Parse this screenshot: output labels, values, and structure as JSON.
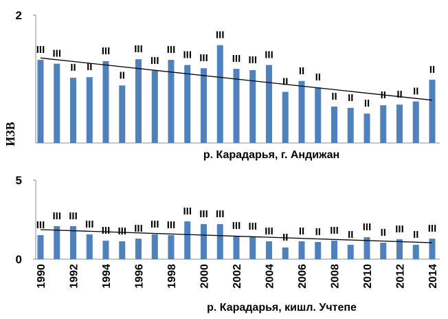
{
  "chart_data": [
    {
      "type": "bar",
      "subtitle": "р. Карадарья, г. Андижан",
      "y_label": "ИЗВ",
      "color": "#4f81bd",
      "values": [
        1.3,
        1.24,
        1.02,
        1.03,
        1.28,
        0.9,
        1.31,
        1.13,
        1.3,
        1.22,
        1.17,
        1.53,
        1.16,
        1.14,
        1.22,
        0.8,
        0.97,
        0.87,
        0.57,
        0.55,
        0.46,
        0.59,
        0.6,
        0.65,
        0.99
      ],
      "classes": [
        "III",
        "III",
        "II",
        "II",
        "III",
        "II",
        "III",
        "III",
        "III",
        "III",
        "III",
        "III",
        "III",
        "III",
        "III",
        "II",
        "II",
        "II",
        "II",
        "II",
        "II",
        "II",
        "II",
        "II",
        "II"
      ],
      "trend": [
        1.33,
        0.67
      ],
      "ylim": [
        0,
        2
      ],
      "yticks": [
        2
      ]
    },
    {
      "type": "bar",
      "subtitle": "р. Карадарья, кишл. Учтепе",
      "color": "#4f81bd",
      "categories": [
        "1990",
        null,
        "1992",
        null,
        "1994",
        null,
        "1996",
        null,
        "1998",
        null,
        "2000",
        null,
        "2002",
        null,
        "2004",
        null,
        "2006",
        null,
        "2008",
        null,
        "2010",
        null,
        "2012",
        null,
        "2014"
      ],
      "values": [
        1.52,
        2.09,
        2.09,
        1.57,
        1.17,
        1.13,
        1.3,
        1.57,
        1.52,
        2.39,
        2.22,
        2.22,
        1.48,
        1.43,
        1.13,
        0.74,
        1.13,
        1.09,
        1.17,
        0.91,
        1.39,
        1.04,
        1.26,
        0.91,
        1.3
      ],
      "classes": [
        "III",
        "III",
        "III",
        "III",
        "III",
        "III",
        "III",
        "III",
        "III",
        "III",
        "III",
        "III",
        "III",
        "III",
        "III",
        "II",
        "II",
        "II",
        "III",
        "II",
        "III",
        "II",
        "III",
        "II",
        "III"
      ],
      "trend": [
        1.87,
        1.04
      ],
      "ylim": [
        0,
        5
      ],
      "yticks": [
        0,
        5
      ]
    }
  ]
}
